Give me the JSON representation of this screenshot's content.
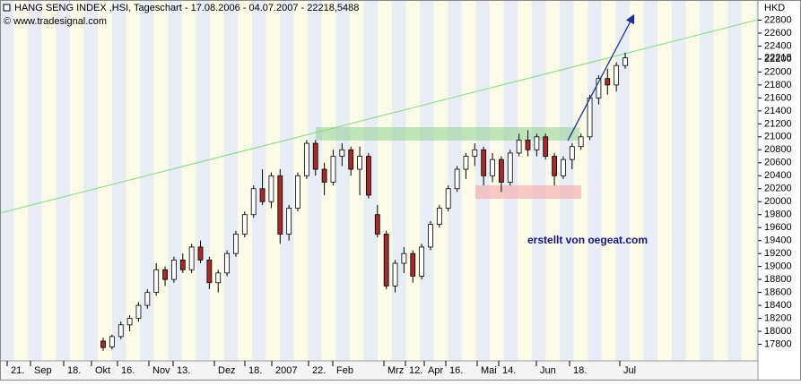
{
  "chart_data": {
    "type": "candlestick",
    "title": "HANG SENG INDEX ,HSI, Tageschart - 17.08.2006 - 04.07.2007 - 22218,5488",
    "credit": "© www.tradesignal.com",
    "currency": "HKD",
    "annotation": "erstellt von oegeat.com",
    "last_price": 22218,
    "x_labels": [
      "21.",
      "Sep",
      "18.",
      "Okt",
      "16.",
      "Nov",
      "13.",
      "Dez",
      "18.",
      "2007",
      "22.",
      "Feb",
      "Mrz",
      "12.",
      "Apr",
      "16.",
      "Mai",
      "14.",
      "Jun",
      "18.",
      "Jul"
    ],
    "ylim": [
      17545,
      23083
    ],
    "yticks": [
      17800,
      18000,
      18200,
      18400,
      18600,
      18800,
      19000,
      19200,
      19400,
      19600,
      19800,
      20000,
      20200,
      20400,
      20600,
      20800,
      21000,
      21200,
      21400,
      21600,
      21800,
      22000,
      22200,
      22400,
      22600,
      22800
    ],
    "up_color": "#ffffff",
    "down_color": "#a52a2a",
    "open": [
      17850,
      17760,
      17920,
      18100,
      18200,
      18400,
      18600,
      18950,
      18800,
      19100,
      18950,
      19300,
      19100,
      18750,
      18900,
      19200,
      19500,
      19800,
      20200,
      20000,
      20400,
      19500,
      19900,
      20400,
      20900,
      20500,
      20300,
      20700,
      20800,
      20500,
      20700,
      19800,
      19500,
      18700,
      19050,
      19200,
      18850,
      19300,
      19650,
      19900,
      20200,
      20500,
      20700,
      20800,
      20400,
      20650,
      20300,
      20750,
      20950,
      20800,
      21000,
      20700,
      20400,
      20650,
      20850,
      21000,
      21600,
      21900,
      21800,
      22100
    ],
    "high": [
      17900,
      17950,
      18150,
      18250,
      18450,
      18650,
      19050,
      19000,
      19150,
      19200,
      19350,
      19400,
      19150,
      18950,
      19250,
      19550,
      19850,
      20250,
      20500,
      20450,
      20500,
      19950,
      20450,
      20950,
      20950,
      20600,
      20800,
      20900,
      20850,
      20850,
      20750,
      19950,
      19550,
      19100,
      19300,
      19250,
      19350,
      19700,
      19950,
      20250,
      20550,
      20750,
      20900,
      20850,
      20750,
      20700,
      20800,
      21050,
      21100,
      21050,
      21050,
      20750,
      20700,
      20900,
      21050,
      21650,
      21950,
      22050,
      22150,
      22300
    ],
    "low": [
      17700,
      17720,
      17880,
      18000,
      18150,
      18350,
      18550,
      18700,
      18750,
      18900,
      18900,
      19050,
      18650,
      18600,
      18850,
      19150,
      19450,
      19750,
      19950,
      19900,
      19350,
      19400,
      19850,
      20350,
      20400,
      20100,
      20250,
      20550,
      20400,
      20100,
      20050,
      19450,
      18650,
      18600,
      18900,
      18750,
      18800,
      19250,
      19600,
      19850,
      20150,
      20350,
      20550,
      20250,
      20300,
      20150,
      20250,
      20700,
      20700,
      20700,
      20650,
      20250,
      20350,
      20500,
      20800,
      20950,
      21500,
      21650,
      21700,
      22050
    ],
    "close": [
      17750,
      17920,
      18100,
      18200,
      18400,
      18600,
      18950,
      18800,
      19100,
      18950,
      19300,
      19100,
      18750,
      18900,
      19200,
      19500,
      19800,
      20200,
      20000,
      20400,
      19500,
      19900,
      20400,
      20900,
      20500,
      20300,
      20700,
      20800,
      20500,
      20700,
      20100,
      19500,
      18700,
      19050,
      19200,
      18850,
      19300,
      19650,
      19900,
      20200,
      20500,
      20700,
      20800,
      20400,
      20650,
      20300,
      20750,
      20950,
      20800,
      21000,
      20700,
      20400,
      20650,
      20850,
      21000,
      21600,
      21900,
      21800,
      22100,
      22218
    ]
  }
}
